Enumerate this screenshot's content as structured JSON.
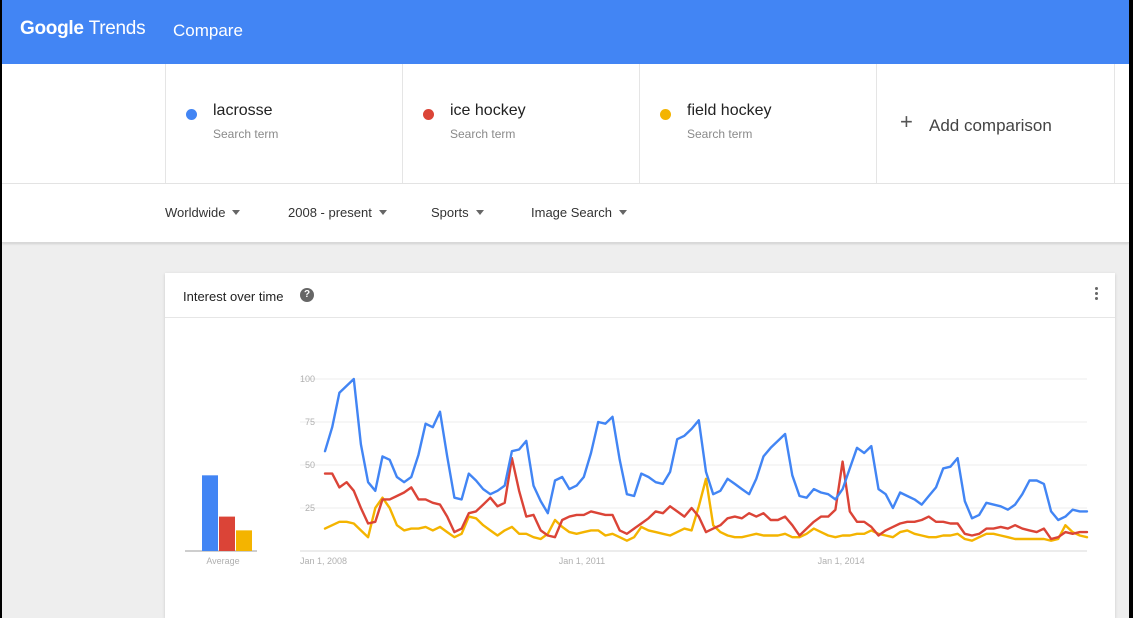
{
  "header": {
    "logo_google": "Google",
    "logo_trends": "Trends",
    "title": "Compare"
  },
  "terms": [
    {
      "name": "lacrosse",
      "subtitle": "Search term",
      "color": "#4285f4"
    },
    {
      "name": "ice hockey",
      "subtitle": "Search term",
      "color": "#db4437"
    },
    {
      "name": "field hockey",
      "subtitle": "Search term",
      "color": "#f4b400"
    }
  ],
  "add_comparison": {
    "icon": "plus-icon",
    "label": "Add comparison"
  },
  "filters": [
    {
      "label": "Worldwide",
      "icon": "caret-down-icon"
    },
    {
      "label": "2008 - present",
      "icon": "caret-down-icon"
    },
    {
      "label": "Sports",
      "icon": "caret-down-icon"
    },
    {
      "label": "Image Search",
      "icon": "caret-down-icon"
    }
  ],
  "card": {
    "title": "Interest over time",
    "help_icon": "help-circle-icon",
    "menu_icon": "more-vert-icon"
  },
  "chart_data": {
    "type": "line",
    "ylim": [
      0,
      100
    ],
    "y_ticks": [
      25,
      50,
      75,
      100
    ],
    "x_range": [
      "2008-01",
      "2017-02"
    ],
    "x_tick_labels": [
      "Jan 1, 2008",
      "Jan 1, 2011",
      "Jan 1, 2014"
    ],
    "x_tick_positions": [
      0,
      36,
      72
    ],
    "grid": true,
    "average_label": "Average",
    "averages": [
      44,
      20,
      12
    ],
    "series": [
      {
        "name": "lacrosse",
        "color": "#4285f4",
        "values": [
          58,
          72,
          92,
          96,
          100,
          62,
          40,
          35,
          55,
          53,
          43,
          40,
          43,
          56,
          74,
          72,
          81,
          55,
          31,
          30,
          45,
          41,
          36,
          33,
          35,
          38,
          58,
          59,
          64,
          38,
          29,
          22,
          41,
          43,
          36,
          38,
          43,
          57,
          75,
          74,
          78,
          53,
          33,
          32,
          45,
          43,
          40,
          39,
          46,
          65,
          67,
          71,
          76,
          46,
          33,
          35,
          42,
          39,
          36,
          33,
          42,
          55,
          60,
          64,
          68,
          44,
          32,
          31,
          36,
          34,
          33,
          30,
          36,
          48,
          60,
          57,
          61,
          36,
          33,
          25,
          34,
          32,
          30,
          27,
          32,
          37,
          48,
          49,
          54,
          29,
          19,
          21,
          28,
          27,
          26,
          24,
          27,
          33,
          41,
          41,
          39,
          23,
          18,
          20,
          24,
          23,
          23
        ]
      },
      {
        "name": "ice hockey",
        "color": "#db4437",
        "values": [
          45,
          45,
          37,
          40,
          35,
          25,
          16,
          17,
          30,
          30,
          32,
          34,
          37,
          30,
          30,
          28,
          27,
          20,
          11,
          13,
          22,
          23,
          27,
          31,
          26,
          28,
          54,
          35,
          20,
          21,
          12,
          9,
          8,
          18,
          20,
          21,
          21,
          23,
          22,
          21,
          21,
          12,
          10,
          13,
          16,
          19,
          23,
          22,
          26,
          23,
          20,
          25,
          20,
          11,
          13,
          15,
          19,
          20,
          19,
          22,
          20,
          22,
          18,
          18,
          20,
          15,
          9,
          13,
          17,
          20,
          20,
          24,
          52,
          23,
          17,
          17,
          14,
          9,
          12,
          14,
          16,
          17,
          17,
          18,
          20,
          17,
          17,
          16,
          16,
          10,
          9,
          10,
          13,
          13,
          14,
          13,
          15,
          13,
          12,
          11,
          13,
          7,
          8,
          11,
          10,
          11,
          11
        ]
      },
      {
        "name": "field hockey",
        "color": "#f4b400",
        "values": [
          13,
          15,
          17,
          17,
          16,
          12,
          8,
          25,
          31,
          25,
          15,
          12,
          13,
          13,
          14,
          12,
          14,
          11,
          8,
          10,
          20,
          19,
          15,
          12,
          9,
          12,
          14,
          10,
          10,
          8,
          7,
          10,
          18,
          14,
          11,
          10,
          11,
          12,
          12,
          9,
          10,
          8,
          6,
          8,
          14,
          12,
          11,
          10,
          9,
          11,
          13,
          12,
          26,
          42,
          15,
          11,
          9,
          8,
          8,
          9,
          10,
          9,
          9,
          9,
          10,
          8,
          8,
          10,
          13,
          11,
          9,
          8,
          9,
          9,
          10,
          10,
          12,
          10,
          9,
          8,
          11,
          12,
          10,
          9,
          8,
          8,
          9,
          9,
          10,
          7,
          6,
          8,
          10,
          10,
          9,
          8,
          7,
          7,
          7,
          7,
          7,
          6,
          7,
          15,
          11,
          9,
          8
        ]
      }
    ]
  }
}
